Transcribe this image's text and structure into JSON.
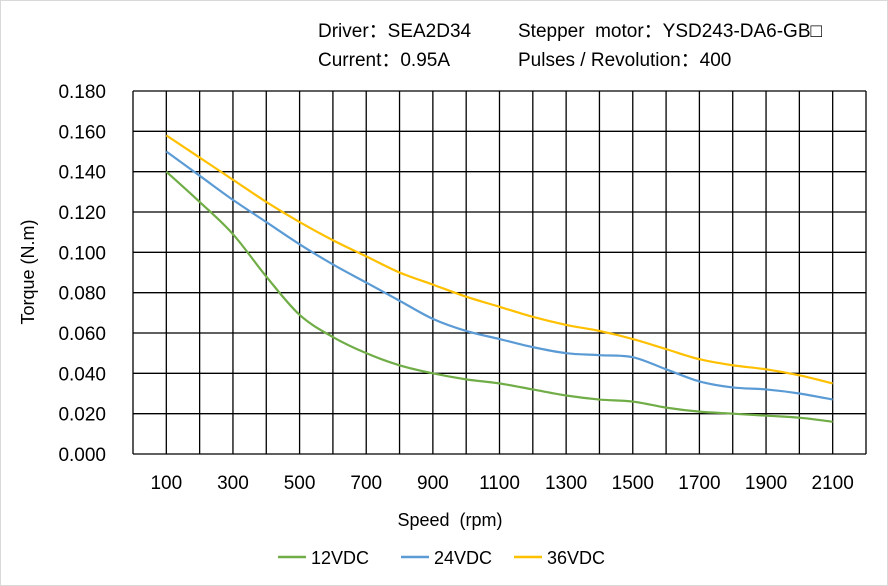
{
  "header": {
    "driver": "Driver：SEA2D34",
    "motor": "Stepper  motor：YSD243-DA6-GB□",
    "current": "Current：0.95A",
    "pulses": "Pulses / Revolution：400"
  },
  "chart_data": {
    "type": "line",
    "title": "",
    "xlabel": "Speed  (rpm)",
    "ylabel": "Torque (N.m)",
    "xlim": [
      0,
      2200
    ],
    "ylim": [
      0,
      0.18
    ],
    "grid": true,
    "legend": "bottom",
    "x_ticks": [
      "100",
      "300",
      "500",
      "700",
      "900",
      "1100",
      "1300",
      "1500",
      "1700",
      "1900",
      "2100"
    ],
    "y_ticks": [
      "0.000",
      "0.020",
      "0.040",
      "0.060",
      "0.080",
      "0.100",
      "0.120",
      "0.140",
      "0.160",
      "0.180"
    ],
    "x": [
      100,
      200,
      300,
      400,
      500,
      600,
      700,
      800,
      900,
      1000,
      1100,
      1200,
      1300,
      1400,
      1500,
      1600,
      1700,
      1800,
      1900,
      2000,
      2100
    ],
    "series": [
      {
        "name": "12VDC",
        "color": "#70AD47",
        "values": [
          0.14,
          0.125,
          0.109,
          0.088,
          0.069,
          0.058,
          0.05,
          0.044,
          0.04,
          0.037,
          0.035,
          0.032,
          0.029,
          0.027,
          0.026,
          0.023,
          0.021,
          0.02,
          0.019,
          0.018,
          0.016
        ]
      },
      {
        "name": "24VDC",
        "color": "#5B9BD5",
        "values": [
          0.15,
          0.138,
          0.126,
          0.115,
          0.104,
          0.094,
          0.085,
          0.076,
          0.067,
          0.061,
          0.057,
          0.053,
          0.05,
          0.049,
          0.048,
          0.042,
          0.036,
          0.033,
          0.032,
          0.03,
          0.027
        ]
      },
      {
        "name": "36VDC",
        "color": "#FFC000",
        "values": [
          0.158,
          0.147,
          0.136,
          0.125,
          0.115,
          0.106,
          0.098,
          0.09,
          0.084,
          0.078,
          0.073,
          0.068,
          0.064,
          0.061,
          0.057,
          0.052,
          0.047,
          0.044,
          0.042,
          0.039,
          0.035
        ]
      }
    ]
  }
}
